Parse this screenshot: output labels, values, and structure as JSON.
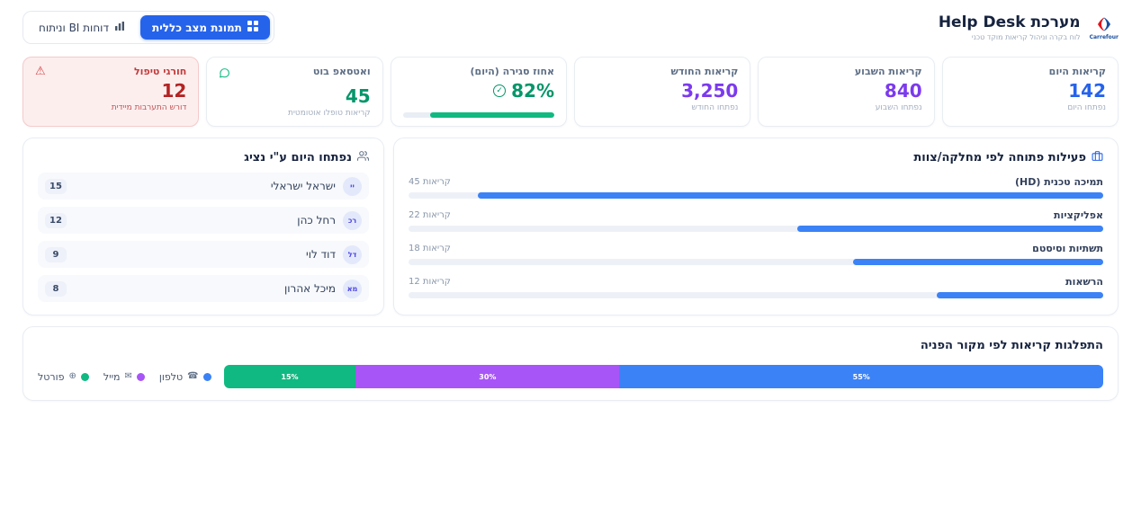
{
  "colors": {
    "primary_blue": "#2563eb",
    "purple": "#7c3aed",
    "green": "#059669",
    "bar_blue": "#3b82f6",
    "seg_green": "#10b981",
    "seg_purple": "#a855f7",
    "alert_red": "#b42323",
    "brand_blue": "#1a4fa0",
    "brand_red": "#e4131b"
  },
  "header": {
    "title": "מערכת Help Desk",
    "subtitle": "לוח בקרה וניהול קריאות מוקד טכני",
    "brand": "Carrefour",
    "tabs": {
      "overview": "תמונת מצב כללית",
      "reports": "דוחות BI וניתוח"
    }
  },
  "kpis": [
    {
      "label": "קריאות היום",
      "value": "142",
      "sub": "נפתחו היום"
    },
    {
      "label": "קריאות השבוע",
      "value": "840",
      "sub": "נפתחו השבוע"
    },
    {
      "label": "קריאות החודש",
      "value": "3,250",
      "sub": "נפתחו החודש"
    },
    {
      "label": "אחוז סגירה (היום)",
      "value": "82%",
      "progress_pct": 82
    },
    {
      "label": "ואטסאפ בוט",
      "value": "45",
      "sub": "קריאות טופלו אוטומטית"
    },
    {
      "label": "חורגי טיפול",
      "value": "12",
      "sub": "דורש התערבות מיידית"
    }
  ],
  "agents": {
    "title": "נפתחו היום ע\"י נציג",
    "rows": [
      {
        "initials": "יי",
        "name": "ישראל ישראלי",
        "count": "15"
      },
      {
        "initials": "רכ",
        "name": "רחל כהן",
        "count": "12"
      },
      {
        "initials": "דל",
        "name": "דוד לוי",
        "count": "9"
      },
      {
        "initials": "מא",
        "name": "מיכל אהרון",
        "count": "8"
      }
    ]
  },
  "departments": {
    "title": "פעילות פתוחה לפי מחלקה/צוות",
    "rows": [
      {
        "name": "תמיכה טכנית (HD)",
        "count": 45,
        "count_label": "45 קריאות",
        "pct": 90
      },
      {
        "name": "אפליקציות",
        "count": 22,
        "count_label": "22 קריאות",
        "pct": 44
      },
      {
        "name": "תשתיות וסיסטם",
        "count": 18,
        "count_label": "18 קריאות",
        "pct": 36
      },
      {
        "name": "הרשאות",
        "count": 12,
        "count_label": "12 קריאות",
        "pct": 24
      }
    ]
  },
  "sources": {
    "title": "התפלגות קריאות לפי מקור הפניה",
    "segments": [
      {
        "label": "טלפון",
        "pct": 55,
        "pct_label": "55%",
        "color": "#3b82f6",
        "icon": "phone-icon"
      },
      {
        "label": "מייל",
        "pct": 30,
        "pct_label": "30%",
        "color": "#a855f7",
        "icon": "mail-icon"
      },
      {
        "label": "פורטל",
        "pct": 15,
        "pct_label": "15%",
        "color": "#10b981",
        "icon": "globe-icon"
      }
    ]
  },
  "chart_data": [
    {
      "type": "bar",
      "orientation": "horizontal",
      "title": "פעילות פתוחה לפי מחלקה/צוות",
      "categories": [
        "תמיכה טכנית (HD)",
        "אפליקציות",
        "תשתיות וסיסטם",
        "הרשאות"
      ],
      "values": [
        45,
        22,
        18,
        12
      ],
      "unit": "קריאות",
      "xlim": [
        0,
        50
      ],
      "grid": false
    },
    {
      "type": "stacked-bar",
      "title": "התפלגות קריאות לפי מקור הפניה",
      "categories": [
        "טלפון",
        "מייל",
        "פורטל"
      ],
      "values": [
        55,
        30,
        15
      ],
      "unit": "%",
      "legend_position": "left",
      "colors": [
        "#3b82f6",
        "#a855f7",
        "#10b981"
      ]
    }
  ]
}
